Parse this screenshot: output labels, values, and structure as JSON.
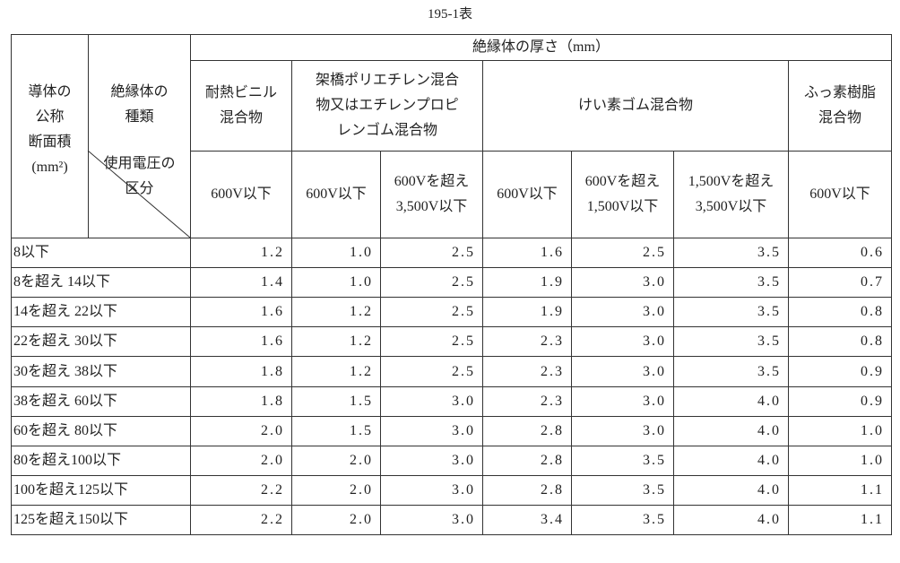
{
  "title": "195-1表",
  "header": {
    "thickness": "絶縁体の厚さ（mm）",
    "conductor": "導体の\n公称\n断面積\n(mm²)",
    "insulator_kind": "絶縁体の\n種類",
    "voltage_class": "使用電圧の\n区分",
    "materials": [
      "耐熱ビニル\n混合物",
      "架橋ポリエチレン混合\n物又はエチレンプロピ\nレンゴム混合物",
      "けい素ゴム混合物",
      "ふっ素樹脂\n混合物"
    ],
    "voltages": [
      "600V以下",
      "600V以下",
      "600Vを超え\n3,500V以下",
      "600V以下",
      "600Vを超え\n1,500V以下",
      "1,500Vを超え\n3,500V以下",
      "600V以下"
    ]
  },
  "rows": [
    {
      "label": "8以下",
      "values": [
        "1.2",
        "1.0",
        "2.5",
        "1.6",
        "2.5",
        "3.5",
        "0.6"
      ]
    },
    {
      "label": "8を超え 14以下",
      "values": [
        "1.4",
        "1.0",
        "2.5",
        "1.9",
        "3.0",
        "3.5",
        "0.7"
      ]
    },
    {
      "label": "14を超え 22以下",
      "values": [
        "1.6",
        "1.2",
        "2.5",
        "1.9",
        "3.0",
        "3.5",
        "0.8"
      ]
    },
    {
      "label": "22を超え 30以下",
      "values": [
        "1.6",
        "1.2",
        "2.5",
        "2.3",
        "3.0",
        "3.5",
        "0.8"
      ]
    },
    {
      "label": "30を超え 38以下",
      "values": [
        "1.8",
        "1.2",
        "2.5",
        "2.3",
        "3.0",
        "3.5",
        "0.9"
      ]
    },
    {
      "label": "38を超え 60以下",
      "values": [
        "1.8",
        "1.5",
        "3.0",
        "2.3",
        "3.0",
        "4.0",
        "0.9"
      ]
    },
    {
      "label": "60を超え 80以下",
      "values": [
        "2.0",
        "1.5",
        "3.0",
        "2.8",
        "3.0",
        "4.0",
        "1.0"
      ]
    },
    {
      "label": "80を超え100以下",
      "values": [
        "2.0",
        "2.0",
        "3.0",
        "2.8",
        "3.5",
        "4.0",
        "1.0"
      ]
    },
    {
      "label": "100を超え125以下",
      "values": [
        "2.2",
        "2.0",
        "3.0",
        "2.8",
        "3.5",
        "4.0",
        "1.1"
      ]
    },
    {
      "label": "125を超え150以下",
      "values": [
        "2.2",
        "2.0",
        "3.0",
        "3.4",
        "3.5",
        "4.0",
        "1.1"
      ]
    }
  ]
}
